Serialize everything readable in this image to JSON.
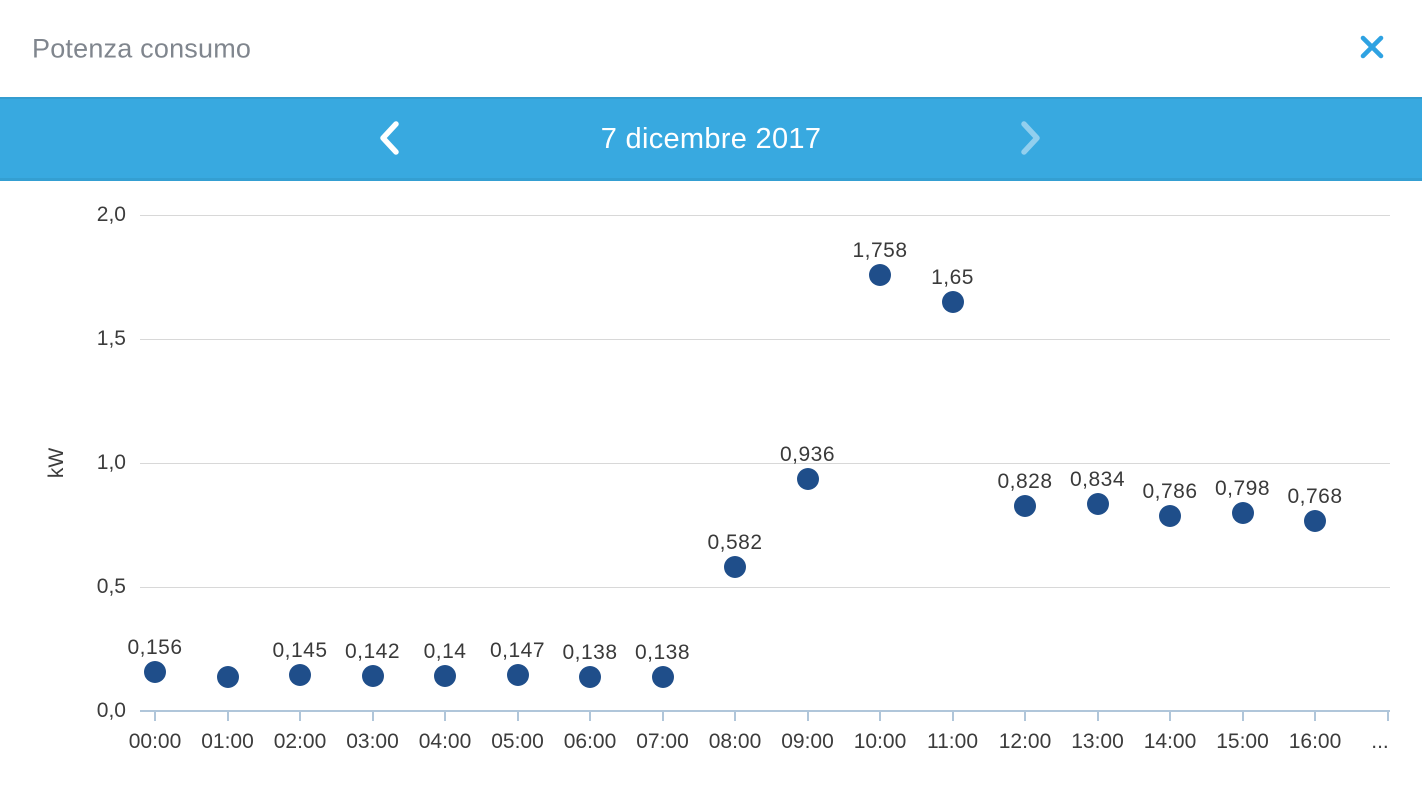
{
  "header": {
    "title": "Potenza consumo"
  },
  "nav": {
    "date_label": "7 dicembre 2017",
    "prev_enabled": true,
    "next_enabled": false
  },
  "icons": {
    "close": "close-x",
    "prev": "chevron-left",
    "next": "chevron-right"
  },
  "chart_data": {
    "type": "scatter",
    "title": "Potenza consumo",
    "xlabel": "",
    "ylabel": "kW",
    "ylim": [
      0,
      2.0
    ],
    "grid": true,
    "legend": false,
    "x_overflow_label": "...",
    "yticks": [
      {
        "value": 0.0,
        "label": "0,0"
      },
      {
        "value": 0.5,
        "label": "0,5"
      },
      {
        "value": 1.0,
        "label": "1,0"
      },
      {
        "value": 1.5,
        "label": "1,5"
      },
      {
        "value": 2.0,
        "label": "2,0"
      }
    ],
    "points": [
      {
        "time": "00:00",
        "value": 0.156,
        "label": "0,156"
      },
      {
        "time": "01:00",
        "value": 0.137,
        "label": ""
      },
      {
        "time": "02:00",
        "value": 0.145,
        "label": "0,145"
      },
      {
        "time": "03:00",
        "value": 0.142,
        "label": "0,142"
      },
      {
        "time": "04:00",
        "value": 0.14,
        "label": "0,14"
      },
      {
        "time": "05:00",
        "value": 0.147,
        "label": "0,147"
      },
      {
        "time": "06:00",
        "value": 0.138,
        "label": "0,138"
      },
      {
        "time": "07:00",
        "value": 0.138,
        "label": "0,138"
      },
      {
        "time": "08:00",
        "value": 0.582,
        "label": "0,582"
      },
      {
        "time": "09:00",
        "value": 0.936,
        "label": "0,936"
      },
      {
        "time": "10:00",
        "value": 1.758,
        "label": "1,758"
      },
      {
        "time": "11:00",
        "value": 1.65,
        "label": "1,65"
      },
      {
        "time": "12:00",
        "value": 0.828,
        "label": "0,828"
      },
      {
        "time": "13:00",
        "value": 0.834,
        "label": "0,834"
      },
      {
        "time": "14:00",
        "value": 0.786,
        "label": "0,786"
      },
      {
        "time": "15:00",
        "value": 0.798,
        "label": "0,798"
      },
      {
        "time": "16:00",
        "value": 0.768,
        "label": "0,768"
      }
    ]
  },
  "colors": {
    "accent_blue": "#38a9e0",
    "close_icon_blue": "#2ea2e2",
    "point_navy": "#1f4e8a",
    "grid_gray": "#d8d8d8",
    "axis_blue": "#b0c6da",
    "title_gray": "#80868e",
    "text_dark": "#3c3c3c"
  }
}
